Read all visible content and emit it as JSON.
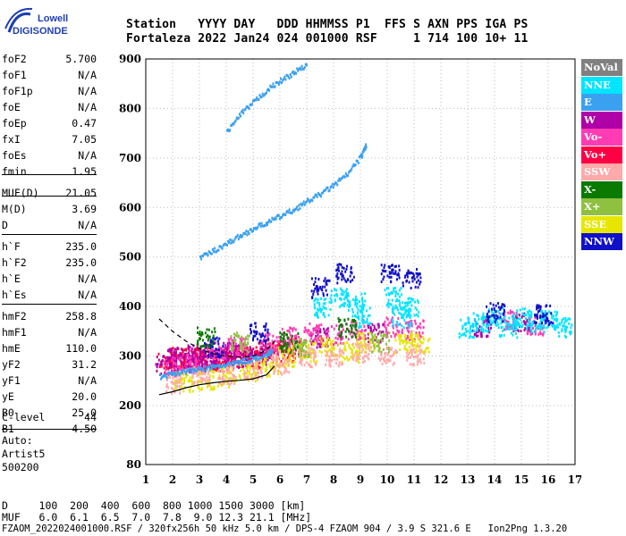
{
  "logo": {
    "line1": "Lowell",
    "line2": "DIGISONDE"
  },
  "header": {
    "labels": "Station   YYYY DAY   DDD HHMMSS P1  FFS S AXN PPS IGA PS",
    "values": "Fortaleza 2022 Jan24 024 001000 RSF     1 714 100 10+ 11"
  },
  "params": [
    {
      "label": "foF2",
      "value": "5.700"
    },
    {
      "label": "foF1",
      "value": "N/A"
    },
    {
      "label": "foF1p",
      "value": "N/A"
    },
    {
      "label": "foE",
      "value": "N/A"
    },
    {
      "label": "foEp",
      "value": "0.47"
    },
    {
      "label": "fxI",
      "value": "7.05"
    },
    {
      "label": "foEs",
      "value": "N/A"
    },
    {
      "label": "fmin",
      "value": "1.95"
    },
    {
      "label": "MUF(D)",
      "value": "21.05"
    },
    {
      "label": "M(D)",
      "value": "3.69"
    },
    {
      "label": "D",
      "value": "N/A"
    },
    {
      "label": "h`F",
      "value": "235.0"
    },
    {
      "label": "h`F2",
      "value": "235.0"
    },
    {
      "label": "h`E",
      "value": "N/A"
    },
    {
      "label": "h`Es",
      "value": "N/A"
    },
    {
      "label": "hmF2",
      "value": "258.8"
    },
    {
      "label": "hmF1",
      "value": "N/A"
    },
    {
      "label": "hmE",
      "value": "110.0"
    },
    {
      "label": "yF2",
      "value": "31.2"
    },
    {
      "label": "yF1",
      "value": "N/A"
    },
    {
      "label": "yE",
      "value": "20.0"
    },
    {
      "label": "B0",
      "value": "25.0"
    },
    {
      "label": "B1",
      "value": "4.50"
    },
    {
      "label": "C-level",
      "value": "44"
    }
  ],
  "autoscaling": [
    "Auto:",
    "Artist5",
    "500200"
  ],
  "legend": [
    {
      "label": "NoVal",
      "color": "#808080"
    },
    {
      "label": "NNE",
      "color": "#00e5ff"
    },
    {
      "label": "E",
      "color": "#3aa0f0"
    },
    {
      "label": "W",
      "color": "#b000a8"
    },
    {
      "label": "Vo-",
      "color": "#ff3cb4"
    },
    {
      "label": "Vo+",
      "color": "#ff0044"
    },
    {
      "label": "SSW",
      "color": "#ffaaaa"
    },
    {
      "label": "X-",
      "color": "#0a7a00"
    },
    {
      "label": "X+",
      "color": "#8fc040"
    },
    {
      "label": "SSE",
      "color": "#e6e600"
    },
    {
      "label": "NNW",
      "color": "#1010c8"
    }
  ],
  "bottom": {
    "d_line": "D     100  200  400  600  800 1000 1500 3000 [km]",
    "muf_line": "MUF   6.0  6.1  6.5  7.0  7.8  9.0 12.3 21.1 [MHz]",
    "footer": "FZAOM_2022024001000.RSF / 320fx256h 50 kHz 5.0 km / DPS-4 FZAOM 904 / 3.9 S 321.6 E   Ion2Png 1.3.20"
  },
  "chart_data": {
    "type": "scatter",
    "title": "",
    "xlabel": "",
    "ylabel": "",
    "xlim": [
      1,
      17
    ],
    "ylim": [
      80,
      900
    ],
    "x_ticks": [
      1,
      2,
      3,
      4,
      5,
      6,
      7,
      8,
      9,
      10,
      11,
      12,
      13,
      14,
      15,
      16,
      17
    ],
    "y_ticks": [
      80,
      200,
      300,
      400,
      500,
      600,
      700,
      800,
      900
    ],
    "y_scale": "nonlinear (80 to 200 compressed)",
    "grid": true,
    "legend_position": "right",
    "traces": [
      {
        "name": "O-trace F2 low",
        "color": "#3aa0f0",
        "points": [
          [
            1.5,
            260
          ],
          [
            2,
            268
          ],
          [
            2.5,
            272
          ],
          [
            3,
            276
          ],
          [
            3.5,
            280
          ],
          [
            4,
            285
          ],
          [
            4.5,
            290
          ],
          [
            5,
            298
          ],
          [
            5.5,
            305
          ],
          [
            5.7,
            315
          ]
        ]
      },
      {
        "name": "second hop",
        "color": "#3aa0f0",
        "points": [
          [
            3,
            500
          ],
          [
            3.5,
            515
          ],
          [
            4,
            530
          ],
          [
            4.5,
            545
          ],
          [
            5,
            560
          ],
          [
            5.5,
            572
          ],
          [
            6,
            585
          ],
          [
            6.5,
            598
          ],
          [
            7,
            615
          ],
          [
            7.5,
            630
          ],
          [
            8,
            648
          ],
          [
            8.5,
            670
          ],
          [
            9,
            705
          ],
          [
            9.2,
            730
          ]
        ]
      },
      {
        "name": "third hop",
        "color": "#3aa0f0",
        "points": [
          [
            4,
            755
          ],
          [
            4.5,
            790
          ],
          [
            5,
            815
          ],
          [
            5.5,
            840
          ],
          [
            6,
            858
          ],
          [
            6.5,
            875
          ],
          [
            7,
            890
          ]
        ]
      }
    ],
    "clusters": [
      {
        "color": "#ff0044",
        "points": [
          [
            1.8,
            290
          ],
          [
            2.2,
            300
          ],
          [
            2.6,
            295
          ],
          [
            3,
            300
          ],
          [
            3.4,
            290
          ],
          [
            3.8,
            295
          ],
          [
            4.2,
            305
          ],
          [
            4.6,
            300
          ],
          [
            5,
            298
          ],
          [
            5.4,
            310
          ],
          [
            5.8,
            318
          ],
          [
            6.2,
            310
          ],
          [
            6.6,
            320
          ]
        ]
      },
      {
        "color": "#b000a8",
        "points": [
          [
            1.7,
            285
          ],
          [
            2.1,
            300
          ],
          [
            2.5,
            290
          ],
          [
            2.9,
            305
          ],
          [
            3.3,
            295
          ],
          [
            3.7,
            300
          ],
          [
            4.1,
            310
          ],
          [
            4.5,
            295
          ],
          [
            5.2,
            305
          ],
          [
            7.5,
            340
          ],
          [
            9.5,
            350
          ],
          [
            13.5,
            360
          ],
          [
            15,
            370
          ]
        ]
      },
      {
        "color": "#ff3cb4",
        "points": [
          [
            2.0,
            280
          ],
          [
            2.8,
            285
          ],
          [
            3.6,
            310
          ],
          [
            4.4,
            320
          ],
          [
            5.6,
            330
          ],
          [
            6.4,
            340
          ],
          [
            7.2,
            350
          ],
          [
            8.0,
            345
          ],
          [
            8.8,
            355
          ],
          [
            10.2,
            360
          ],
          [
            11,
            355
          ],
          [
            14.5,
            375
          ],
          [
            15.5,
            365
          ]
        ]
      },
      {
        "color": "#e6e600",
        "points": [
          [
            2.4,
            250
          ],
          [
            3.2,
            255
          ],
          [
            4,
            260
          ],
          [
            4.8,
            270
          ],
          [
            5.6,
            280
          ],
          [
            6.2,
            300
          ],
          [
            7,
            310
          ],
          [
            7.8,
            320
          ],
          [
            8.6,
            310
          ],
          [
            9.2,
            330
          ],
          [
            10.6,
            325
          ],
          [
            11.2,
            330
          ]
        ]
      },
      {
        "color": "#00e5ff",
        "points": [
          [
            7.6,
            400
          ],
          [
            8.2,
            420
          ],
          [
            8.8,
            410
          ],
          [
            9.0,
            380
          ],
          [
            10.2,
            420
          ],
          [
            10.5,
            380
          ],
          [
            10.8,
            400
          ],
          [
            13,
            360
          ],
          [
            13.5,
            370
          ],
          [
            14,
            380
          ],
          [
            14.5,
            360
          ],
          [
            15,
            380
          ],
          [
            15.5,
            370
          ],
          [
            16,
            375
          ],
          [
            16.5,
            360
          ]
        ]
      },
      {
        "color": "#ffaaaa",
        "points": [
          [
            2,
            245
          ],
          [
            3,
            260
          ],
          [
            4,
            265
          ],
          [
            5,
            275
          ],
          [
            6,
            285
          ],
          [
            7,
            300
          ],
          [
            8,
            300
          ],
          [
            9,
            310
          ],
          [
            10,
            300
          ],
          [
            11,
            305
          ]
        ]
      },
      {
        "color": "#1010c8",
        "points": [
          [
            3.5,
            320
          ],
          [
            5.2,
            350
          ],
          [
            7.5,
            440
          ],
          [
            8.4,
            470
          ],
          [
            10.1,
            470
          ],
          [
            10.9,
            460
          ],
          [
            14,
            390
          ],
          [
            15.8,
            385
          ]
        ]
      },
      {
        "color": "#0a7a00",
        "points": [
          [
            3.2,
            340
          ],
          [
            6.3,
            330
          ],
          [
            8.5,
            360
          ]
        ]
      },
      {
        "color": "#8fc040",
        "points": [
          [
            4.5,
            330
          ],
          [
            6.8,
            320
          ],
          [
            9.7,
            330
          ]
        ]
      }
    ],
    "curves": [
      {
        "name": "solid profile",
        "style": "solid",
        "points": [
          [
            1.5,
            222
          ],
          [
            2,
            228
          ],
          [
            2.5,
            236
          ],
          [
            3,
            242
          ],
          [
            3.5,
            246
          ],
          [
            4,
            249
          ],
          [
            4.5,
            251
          ],
          [
            5,
            254
          ],
          [
            5.5,
            262
          ],
          [
            5.8,
            280
          ]
        ]
      },
      {
        "name": "dashed profile",
        "style": "dashed",
        "points": [
          [
            1.5,
            375
          ],
          [
            2,
            350
          ],
          [
            2.5,
            330
          ],
          [
            3,
            315
          ],
          [
            3.5,
            305
          ],
          [
            4,
            300
          ],
          [
            4.5,
            298
          ],
          [
            5,
            300
          ],
          [
            5.5,
            312
          ],
          [
            5.8,
            330
          ]
        ]
      }
    ]
  }
}
